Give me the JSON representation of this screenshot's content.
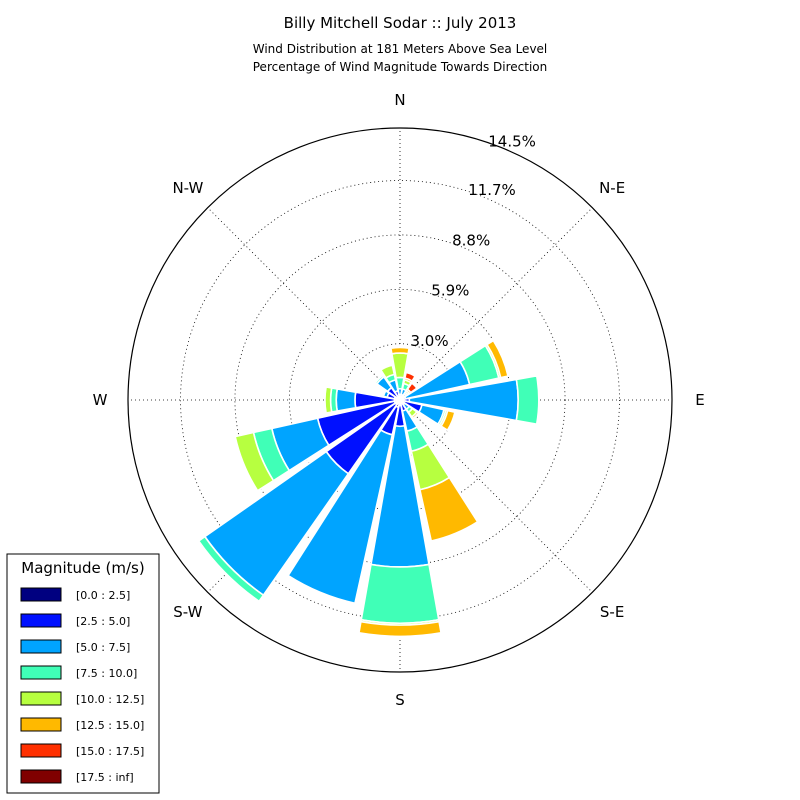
{
  "chart_data": {
    "type": "windrose",
    "title": "Billy Mitchell Sodar :: July 2013",
    "subtitle_lines": [
      "Wind Distribution at 181 Meters Above Sea Level",
      "Percentage of Wind Magnitude Towards Direction"
    ],
    "directions": [
      "N",
      "N-E",
      "E",
      "S-E",
      "S",
      "S-W",
      "W",
      "N-W"
    ],
    "ring_labels": [
      "3.0%",
      "5.9%",
      "8.8%",
      "11.7%",
      "14.5%"
    ],
    "rmax": 14.5,
    "legend": {
      "title": "Magnitude (m/s)",
      "placement": "lower-left",
      "labels": [
        "[0.0 : 2.5]",
        "[2.5 : 5.0]",
        "[5.0 : 7.5]",
        "[7.5 : 10.0]",
        "[10.0 : 12.5]",
        "[12.5 : 15.0]",
        "[15.0 : 17.5]",
        "[17.5 : inf]"
      ]
    },
    "bin_colors": [
      "#000080",
      "#0010ff",
      "#00a4ff",
      "#40ffb7",
      "#b7ff40",
      "#ffb900",
      "#ff3000",
      "#800000"
    ],
    "sector_width_deg": 20,
    "bars": [
      {
        "dir_deg": 0,
        "values": [
          0.1,
          0.2,
          0.3,
          0.6,
          1.3,
          0.3
        ]
      },
      {
        "dir_deg": 22.5,
        "values": [
          0.1,
          0.2,
          0.3,
          0.3,
          0.2,
          0.1,
          0.3
        ]
      },
      {
        "dir_deg": 45,
        "values": [
          0.1,
          0.2,
          0.1,
          0.1,
          0.1,
          0.1,
          0.4
        ]
      },
      {
        "dir_deg": 67.5,
        "values": [
          0.1,
          0.2,
          3.5,
          1.6,
          0.1,
          0.4
        ]
      },
      {
        "dir_deg": 90,
        "values": [
          0.2,
          0.3,
          5.8,
          1.1
        ]
      },
      {
        "dir_deg": 112.5,
        "values": [
          0.2,
          1.0,
          1.2,
          0.1,
          0.1,
          0.4
        ]
      },
      {
        "dir_deg": 135,
        "values": [
          0.1,
          0.2,
          0.3,
          0.2,
          0.3,
          0.1
        ]
      },
      {
        "dir_deg": 157.5,
        "values": [
          0.1,
          0.5,
          1.1,
          1.1,
          2.1,
          2.8
        ]
      },
      {
        "dir_deg": 180,
        "values": [
          0.3,
          1.1,
          7.5,
          3.0,
          0.1,
          0.6
        ]
      },
      {
        "dir_deg": 202.5,
        "values": [
          0.4,
          1.5,
          9.2
        ]
      },
      {
        "dir_deg": 225,
        "values": [
          0.3,
          4.5,
          7.9,
          0.4
        ]
      },
      {
        "dir_deg": 247.5,
        "values": [
          0.3,
          4.2,
          2.5,
          1.0,
          1.0
        ]
      },
      {
        "dir_deg": 270,
        "values": [
          0.3,
          2.1,
          1.0,
          0.3,
          0.3
        ]
      },
      {
        "dir_deg": 292.5,
        "values": [
          0.3,
          0.4,
          0.2
        ]
      },
      {
        "dir_deg": 315,
        "values": [
          0.2,
          0.6,
          0.7,
          0.1
        ]
      },
      {
        "dir_deg": 337.5,
        "values": [
          0.2,
          0.3,
          0.6,
          0.3,
          0.5
        ]
      }
    ]
  }
}
